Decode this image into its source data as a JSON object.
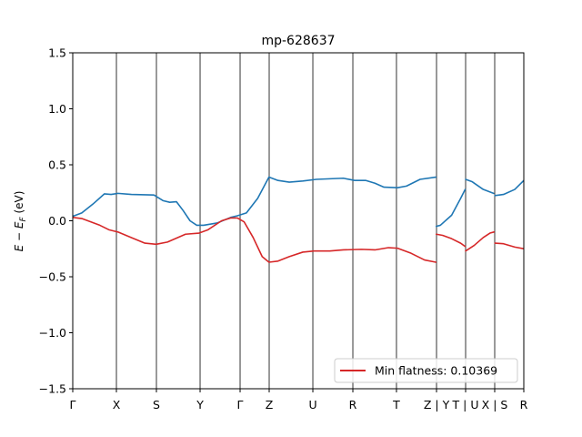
{
  "chart_data": {
    "type": "line",
    "title": "mp-628637",
    "xlabel": "",
    "ylabel": "E − E_F (eV)",
    "ylim": [
      -1.5,
      1.5
    ],
    "xlim": [
      0,
      1
    ],
    "yticks": [
      -1.5,
      -1.0,
      -0.5,
      0.0,
      0.5,
      1.0,
      1.5
    ],
    "ytick_labels": [
      "−1.5",
      "−1.0",
      "−0.5",
      "0.0",
      "0.5",
      "1.0",
      "1.5"
    ],
    "kpoints": [
      {
        "label": "Γ",
        "x": 0.0
      },
      {
        "label": "X",
        "x": 0.0968
      },
      {
        "label": "S",
        "x": 0.1855
      },
      {
        "label": "Y",
        "x": 0.2823
      },
      {
        "label": "Γ",
        "x": 0.371
      },
      {
        "label": "Z",
        "x": 0.4355
      },
      {
        "label": "U",
        "x": 0.5323
      },
      {
        "label": "R",
        "x": 0.621
      },
      {
        "label": "T",
        "x": 0.7177
      },
      {
        "label": "Z | Y",
        "x": 0.8065
      },
      {
        "label": "T | U",
        "x": 0.871
      },
      {
        "label": "X | S",
        "x": 0.9355
      },
      {
        "label": "R",
        "x": 1.0
      }
    ],
    "grid": false,
    "legend_position": "lower right",
    "legend_entries": [
      {
        "label": "Min flatness: 0.10369",
        "color": "#d62728"
      }
    ],
    "series": [
      {
        "color": "#1f77b4",
        "segments": [
          [
            [
              0.0,
              0.04
            ],
            [
              0.02,
              0.07
            ],
            [
              0.045,
              0.15
            ],
            [
              0.07,
              0.24
            ],
            [
              0.085,
              0.235
            ],
            [
              0.1,
              0.245
            ],
            [
              0.13,
              0.235
            ],
            [
              0.18,
              0.23
            ],
            [
              0.2,
              0.18
            ],
            [
              0.215,
              0.165
            ],
            [
              0.23,
              0.17
            ],
            [
              0.245,
              0.09
            ],
            [
              0.26,
              0.0
            ],
            [
              0.275,
              -0.04
            ],
            [
              0.29,
              -0.04
            ],
            [
              0.32,
              -0.02
            ],
            [
              0.35,
              0.03
            ],
            [
              0.365,
              0.045
            ],
            [
              0.385,
              0.07
            ],
            [
              0.41,
              0.2
            ],
            [
              0.435,
              0.39
            ],
            [
              0.455,
              0.36
            ],
            [
              0.48,
              0.345
            ],
            [
              0.51,
              0.355
            ],
            [
              0.54,
              0.37
            ],
            [
              0.57,
              0.375
            ],
            [
              0.6,
              0.38
            ],
            [
              0.625,
              0.36
            ],
            [
              0.65,
              0.36
            ],
            [
              0.67,
              0.335
            ],
            [
              0.69,
              0.3
            ],
            [
              0.72,
              0.295
            ],
            [
              0.74,
              0.31
            ],
            [
              0.77,
              0.37
            ],
            [
              0.805,
              0.39
            ]
          ],
          [
            [
              0.806,
              -0.05
            ],
            [
              0.815,
              -0.04
            ],
            [
              0.84,
              0.05
            ],
            [
              0.86,
              0.2
            ],
            [
              0.87,
              0.28
            ]
          ],
          [
            [
              0.871,
              0.37
            ],
            [
              0.885,
              0.35
            ],
            [
              0.91,
              0.28
            ],
            [
              0.933,
              0.245
            ]
          ],
          [
            [
              0.936,
              0.225
            ],
            [
              0.955,
              0.235
            ],
            [
              0.98,
              0.28
            ],
            [
              1.0,
              0.36
            ]
          ]
        ]
      },
      {
        "color": "#d62728",
        "segments": [
          [
            [
              0.0,
              0.03
            ],
            [
              0.02,
              0.02
            ],
            [
              0.06,
              -0.04
            ],
            [
              0.08,
              -0.08
            ],
            [
              0.1,
              -0.1
            ],
            [
              0.13,
              -0.15
            ],
            [
              0.16,
              -0.2
            ],
            [
              0.185,
              -0.21
            ],
            [
              0.21,
              -0.19
            ],
            [
              0.25,
              -0.12
            ],
            [
              0.28,
              -0.11
            ],
            [
              0.3,
              -0.08
            ],
            [
              0.33,
              0.0
            ],
            [
              0.35,
              0.025
            ],
            [
              0.365,
              0.025
            ],
            [
              0.38,
              -0.01
            ],
            [
              0.4,
              -0.15
            ],
            [
              0.42,
              -0.32
            ],
            [
              0.435,
              -0.37
            ],
            [
              0.455,
              -0.36
            ],
            [
              0.48,
              -0.32
            ],
            [
              0.51,
              -0.28
            ],
            [
              0.535,
              -0.27
            ],
            [
              0.57,
              -0.27
            ],
            [
              0.6,
              -0.26
            ],
            [
              0.64,
              -0.255
            ],
            [
              0.67,
              -0.26
            ],
            [
              0.7,
              -0.24
            ],
            [
              0.72,
              -0.245
            ],
            [
              0.75,
              -0.29
            ],
            [
              0.78,
              -0.35
            ],
            [
              0.805,
              -0.37
            ]
          ],
          [
            [
              0.806,
              -0.12
            ],
            [
              0.82,
              -0.13
            ],
            [
              0.84,
              -0.16
            ],
            [
              0.86,
              -0.2
            ],
            [
              0.87,
              -0.23
            ]
          ],
          [
            [
              0.871,
              -0.27
            ],
            [
              0.89,
              -0.22
            ],
            [
              0.91,
              -0.15
            ],
            [
              0.925,
              -0.11
            ],
            [
              0.934,
              -0.1
            ]
          ],
          [
            [
              0.936,
              -0.2
            ],
            [
              0.955,
              -0.205
            ],
            [
              0.98,
              -0.235
            ],
            [
              1.0,
              -0.25
            ]
          ]
        ]
      }
    ]
  }
}
